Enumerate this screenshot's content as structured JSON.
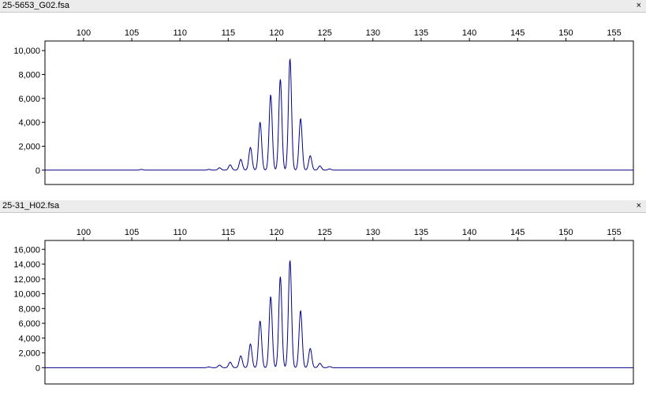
{
  "panels": [
    {
      "title": "25-5653_G02.fsa",
      "close_icon": "×"
    },
    {
      "title": "25-31_H02.fsa",
      "close_icon": "×"
    }
  ],
  "chart_data": [
    {
      "type": "line",
      "xlim": [
        96,
        157
      ],
      "ylim": [
        -1200,
        10800
      ],
      "x_ticks": [
        100,
        105,
        110,
        115,
        120,
        125,
        130,
        135,
        140,
        145,
        150,
        155
      ],
      "y_ticks": [
        0,
        2000,
        4000,
        6000,
        8000,
        10000
      ],
      "y_tick_labels": [
        "0",
        "2,000",
        "4,000",
        "6,000",
        "8,000",
        "10,000"
      ],
      "line_color": "#00008b",
      "peaks": [
        {
          "x": 106.0,
          "y": 60
        },
        {
          "x": 113.0,
          "y": 60
        },
        {
          "x": 114.1,
          "y": 200
        },
        {
          "x": 115.2,
          "y": 450
        },
        {
          "x": 116.3,
          "y": 900
        },
        {
          "x": 117.3,
          "y": 1900
        },
        {
          "x": 118.3,
          "y": 4000
        },
        {
          "x": 119.4,
          "y": 6300
        },
        {
          "x": 120.4,
          "y": 7600
        },
        {
          "x": 121.4,
          "y": 9300
        },
        {
          "x": 122.5,
          "y": 4300
        },
        {
          "x": 123.5,
          "y": 1200
        },
        {
          "x": 124.5,
          "y": 350
        },
        {
          "x": 125.5,
          "y": 100
        }
      ]
    },
    {
      "type": "line",
      "xlim": [
        96,
        157
      ],
      "ylim": [
        -2200,
        17200
      ],
      "x_ticks": [
        100,
        105,
        110,
        115,
        120,
        125,
        130,
        135,
        140,
        145,
        150,
        155
      ],
      "y_ticks": [
        0,
        2000,
        4000,
        6000,
        8000,
        10000,
        12000,
        14000,
        16000
      ],
      "y_tick_labels": [
        "0",
        "2,000",
        "4,000",
        "6,000",
        "8,000",
        "10,000",
        "12,000",
        "14,000",
        "16,000"
      ],
      "line_color": "#00008b",
      "peaks": [
        {
          "x": 113.0,
          "y": 100
        },
        {
          "x": 114.1,
          "y": 350
        },
        {
          "x": 115.2,
          "y": 750
        },
        {
          "x": 116.3,
          "y": 1600
        },
        {
          "x": 117.3,
          "y": 3200
        },
        {
          "x": 118.3,
          "y": 6300
        },
        {
          "x": 119.4,
          "y": 9600
        },
        {
          "x": 120.4,
          "y": 12300
        },
        {
          "x": 121.4,
          "y": 14500
        },
        {
          "x": 122.5,
          "y": 7700
        },
        {
          "x": 123.5,
          "y": 2600
        },
        {
          "x": 124.5,
          "y": 600
        },
        {
          "x": 125.5,
          "y": 150
        }
      ]
    }
  ]
}
